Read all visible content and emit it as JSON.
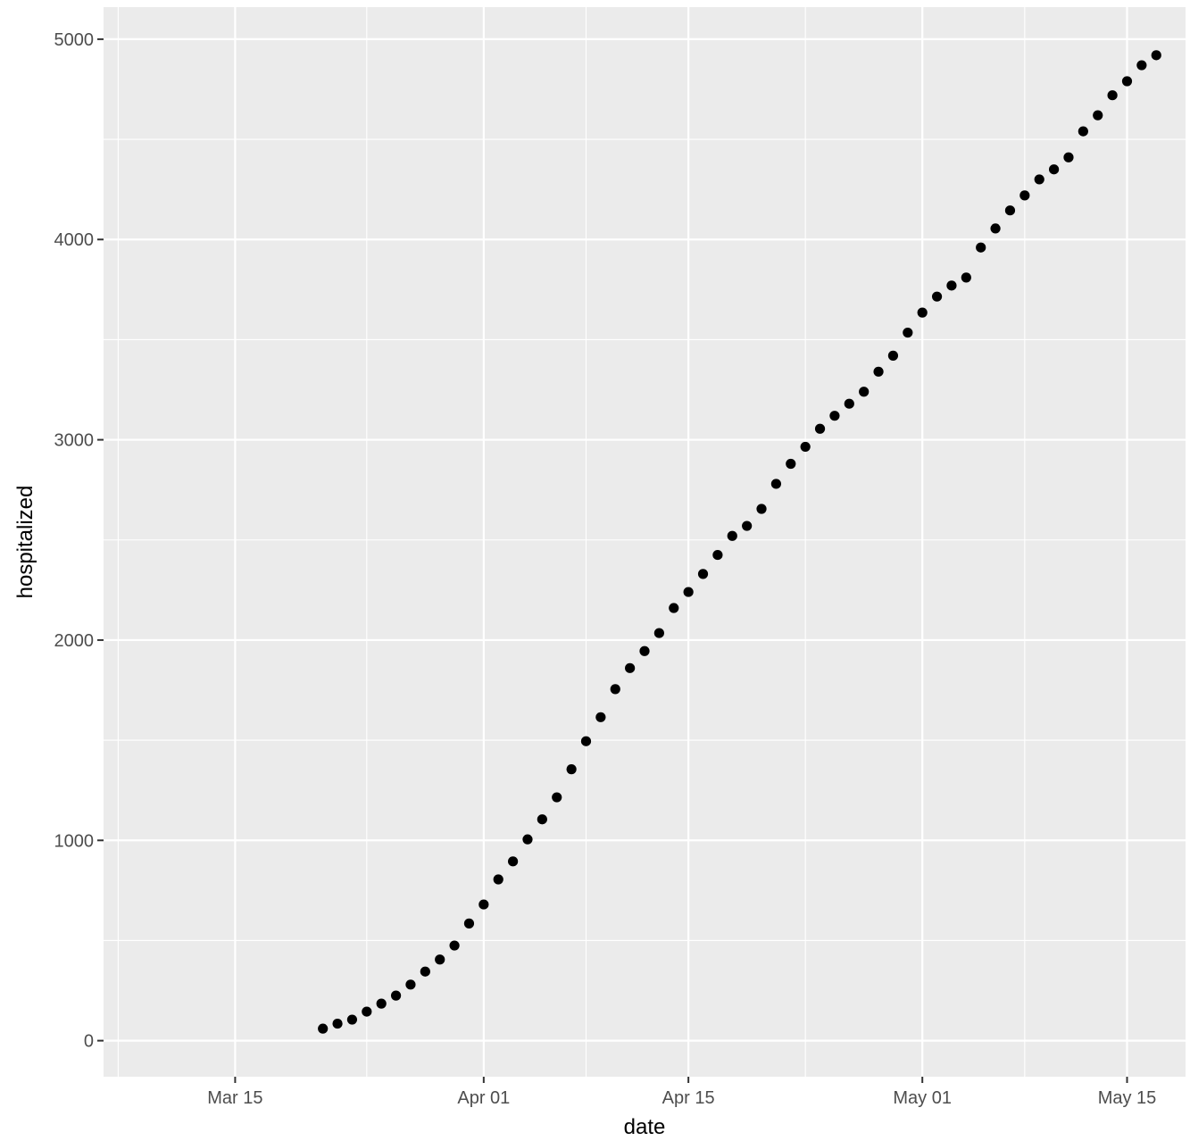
{
  "chart_data": {
    "type": "scatter",
    "title": "",
    "xlabel": "date",
    "ylabel": "hospitalized",
    "x_type": "date",
    "xlim": [
      "2020-03-06",
      "2020-05-19"
    ],
    "ylim": [
      -180,
      5160
    ],
    "x_ticks": [
      {
        "date": "2020-03-15",
        "label": "Mar 15"
      },
      {
        "date": "2020-04-01",
        "label": "Apr 01"
      },
      {
        "date": "2020-04-15",
        "label": "Apr 15"
      },
      {
        "date": "2020-05-01",
        "label": "May 01"
      },
      {
        "date": "2020-05-15",
        "label": "May 15"
      }
    ],
    "x_minor": [
      "2020-03-07",
      "2020-03-24",
      "2020-04-08",
      "2020-04-23",
      "2020-05-08"
    ],
    "y_ticks": [
      0,
      1000,
      2000,
      3000,
      4000,
      5000
    ],
    "y_tick_labels": [
      "0",
      "1000",
      "2000",
      "3000",
      "4000",
      "5000"
    ],
    "y_minor": [
      500,
      1500,
      2500,
      3500,
      4500
    ],
    "grid": true,
    "colors": {
      "panel": "#ebebeb",
      "grid": "#ffffff",
      "point": "#000000"
    },
    "series": [
      {
        "x": [
          "2020-03-21",
          "2020-03-22",
          "2020-03-23",
          "2020-03-24",
          "2020-03-25",
          "2020-03-26",
          "2020-03-27",
          "2020-03-28",
          "2020-03-29",
          "2020-03-30",
          "2020-03-31",
          "2020-04-01",
          "2020-04-02",
          "2020-04-03",
          "2020-04-04",
          "2020-04-05",
          "2020-04-06",
          "2020-04-07",
          "2020-04-08",
          "2020-04-09",
          "2020-04-10",
          "2020-04-11",
          "2020-04-12",
          "2020-04-13",
          "2020-04-14",
          "2020-04-15",
          "2020-04-16",
          "2020-04-17",
          "2020-04-18",
          "2020-04-19",
          "2020-04-20",
          "2020-04-21",
          "2020-04-22",
          "2020-04-23",
          "2020-04-24",
          "2020-04-25",
          "2020-04-26",
          "2020-04-27",
          "2020-04-28",
          "2020-04-29",
          "2020-04-30",
          "2020-05-01",
          "2020-05-02",
          "2020-05-03",
          "2020-05-04",
          "2020-05-05",
          "2020-05-06",
          "2020-05-07",
          "2020-05-08",
          "2020-05-09",
          "2020-05-10",
          "2020-05-11",
          "2020-05-12",
          "2020-05-13",
          "2020-05-14",
          "2020-05-15",
          "2020-05-16",
          "2020-05-17"
        ],
        "values": [
          60,
          85,
          105,
          145,
          185,
          225,
          280,
          345,
          405,
          475,
          585,
          680,
          805,
          895,
          1005,
          1105,
          1215,
          1355,
          1495,
          1615,
          1755,
          1860,
          1945,
          2035,
          2160,
          2240,
          2330,
          2425,
          2520,
          2570,
          2655,
          2780,
          2880,
          2965,
          3055,
          3120,
          3180,
          3240,
          3340,
          3420,
          3535,
          3635,
          3715,
          3770,
          3810,
          3960,
          4055,
          4145,
          4220,
          4300,
          4350,
          4410,
          4540,
          4620,
          4720,
          4790,
          4870,
          4920
        ]
      }
    ]
  }
}
